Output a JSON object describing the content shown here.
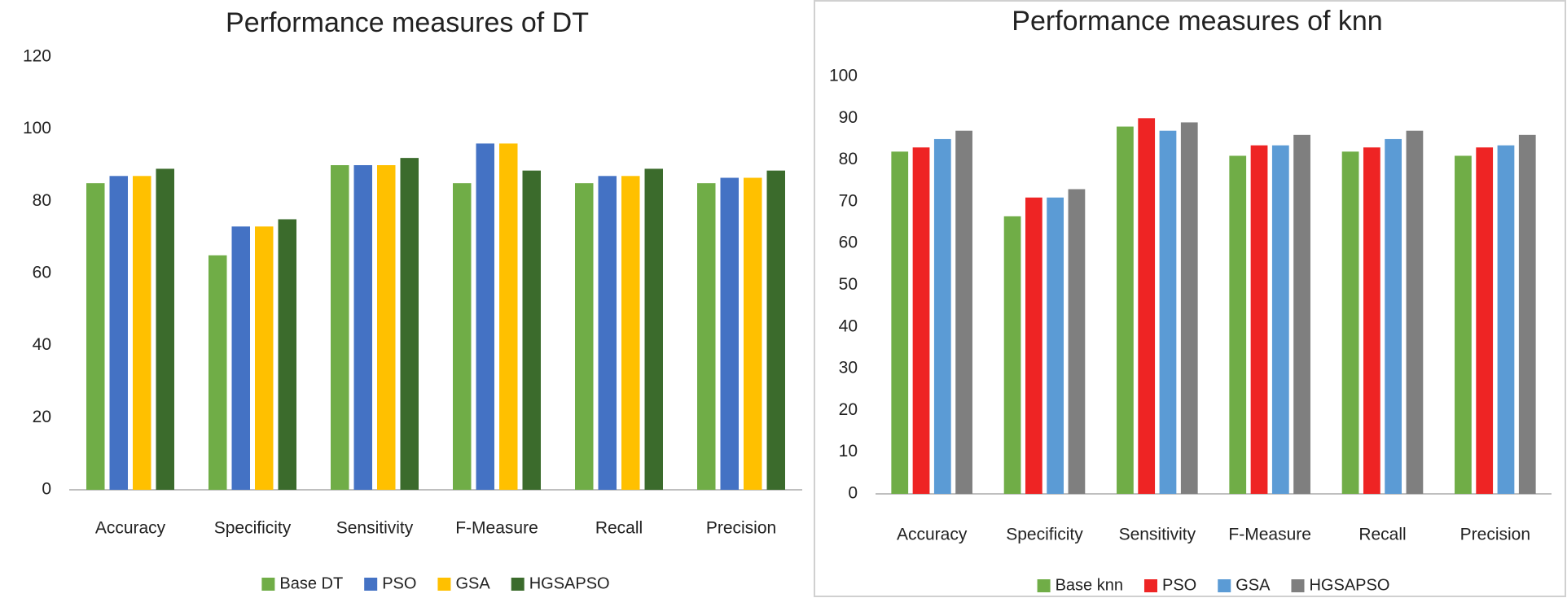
{
  "chart_data": [
    {
      "type": "bar",
      "title": "Performance measures of DT",
      "categories": [
        "Accuracy",
        "Specificity",
        "Sensitivity",
        "F-Measure",
        "Recall",
        "Precision"
      ],
      "series": [
        {
          "name": "Base DT",
          "color": "#70ad47",
          "values": [
            85,
            65,
            90,
            85,
            85,
            85
          ]
        },
        {
          "name": "PSO",
          "color": "#4472c4",
          "values": [
            87,
            73,
            90,
            96,
            87,
            86.5
          ]
        },
        {
          "name": "GSA",
          "color": "#ffc000",
          "values": [
            87,
            73,
            90,
            96,
            87,
            86.5
          ]
        },
        {
          "name": "HGSAPSO",
          "color": "#3b6b2c",
          "values": [
            89,
            75,
            92,
            88.5,
            89,
            88.5
          ]
        }
      ],
      "ylim": [
        0,
        120
      ],
      "yticks": [
        0,
        20,
        40,
        60,
        80,
        100,
        120
      ],
      "grid": false,
      "legend": "bottom"
    },
    {
      "type": "bar",
      "title": "Performance measures of knn",
      "categories": [
        "Accuracy",
        "Specificity",
        "Sensitivity",
        "F-Measure",
        "Recall",
        "Precision"
      ],
      "series": [
        {
          "name": "Base knn",
          "color": "#70ad47",
          "values": [
            82,
            66.5,
            88,
            81,
            82,
            81
          ]
        },
        {
          "name": "PSO",
          "color": "#ee2424",
          "values": [
            83,
            71,
            90,
            83.5,
            83,
            83
          ]
        },
        {
          "name": "GSA",
          "color": "#5b9bd5",
          "values": [
            85,
            71,
            87,
            83.5,
            85,
            83.5
          ]
        },
        {
          "name": "HGSAPSO",
          "color": "#7f7f7f",
          "values": [
            87,
            73,
            89,
            86,
            87,
            86
          ]
        }
      ],
      "ylim": [
        0,
        100
      ],
      "yticks": [
        0,
        10,
        20,
        30,
        40,
        50,
        60,
        70,
        80,
        90,
        100
      ],
      "grid": false,
      "legend": "bottom"
    }
  ]
}
